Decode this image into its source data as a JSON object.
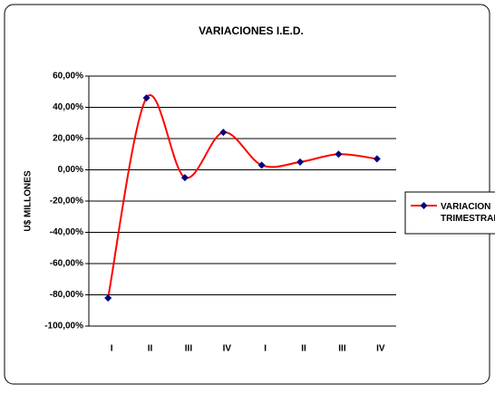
{
  "chart_data": {
    "type": "line",
    "title": "VARIACIONES I.E.D.",
    "y_label": "U$ MILLONES",
    "categories": [
      "I",
      "II",
      "III",
      "IV",
      "I",
      "II",
      "III",
      "IV"
    ],
    "series": [
      {
        "name": "VARIACION TRIMESTRAL",
        "color": "#ff0000",
        "marker_color": "#000080",
        "values": [
          -82,
          46,
          -5,
          24,
          3,
          5,
          10,
          7
        ]
      }
    ],
    "ylim": [
      -100,
      60
    ],
    "yticks": [
      {
        "value": -100,
        "label": "-100,00%"
      },
      {
        "value": -80,
        "label": "-80,00%"
      },
      {
        "value": -60,
        "label": "-60,00%"
      },
      {
        "value": -40,
        "label": "-40,00%"
      },
      {
        "value": -20,
        "label": "-20,00%"
      },
      {
        "value": 0,
        "label": "0,00%"
      },
      {
        "value": 20,
        "label": "20,00%"
      },
      {
        "value": 40,
        "label": "40,00%"
      },
      {
        "value": 60,
        "label": "60,00%"
      }
    ],
    "grid": true,
    "legend": "right"
  }
}
